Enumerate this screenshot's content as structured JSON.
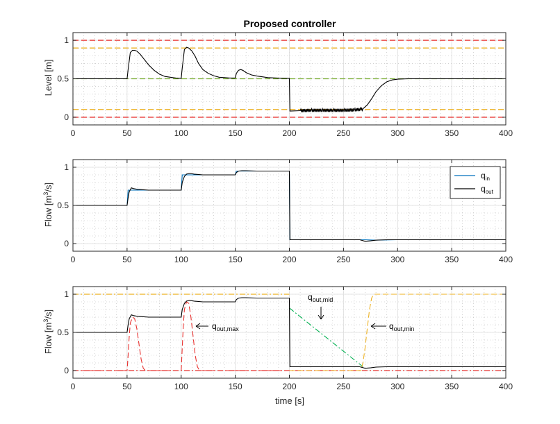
{
  "chart_data": [
    {
      "type": "line",
      "title": "Proposed controller",
      "xlabel": "",
      "ylabel": "Level [m]",
      "xlim": [
        0,
        400
      ],
      "ylim": [
        -0.1,
        1.1
      ],
      "xticks": [
        0,
        50,
        100,
        150,
        200,
        250,
        300,
        350,
        400
      ],
      "yticks": [
        0,
        0.5,
        1
      ],
      "ytick_labels": [
        "0",
        "0.5",
        "1"
      ],
      "grid": true,
      "minor_grid": true,
      "hlines": [
        {
          "y": 1.0,
          "color": "#e8312f",
          "style": "dashed"
        },
        {
          "y": 0.9,
          "color": "#edb120",
          "style": "dashed"
        },
        {
          "y": 0.5,
          "color": "#77ac30",
          "style": "dashed"
        },
        {
          "y": 0.1,
          "color": "#edb120",
          "style": "dashed"
        },
        {
          "y": 0.0,
          "color": "#e8312f",
          "style": "dashed"
        }
      ],
      "series": [
        {
          "color": "#000000",
          "x": [
            0,
            50,
            51,
            53,
            55,
            57,
            59,
            62,
            66,
            70,
            75,
            80,
            85,
            90,
            95,
            100,
            101,
            103,
            105,
            107,
            110,
            113,
            116,
            120,
            125,
            130,
            135,
            140,
            145,
            150,
            151,
            153,
            155,
            157,
            160,
            165,
            170,
            175,
            180,
            190,
            200,
            200.5,
            210,
            220,
            230,
            240,
            250,
            260,
            265,
            268,
            272,
            276,
            280,
            285,
            290,
            295,
            300,
            310,
            320,
            400
          ],
          "y": [
            0.5,
            0.5,
            0.62,
            0.84,
            0.87,
            0.87,
            0.86,
            0.82,
            0.75,
            0.68,
            0.61,
            0.56,
            0.53,
            0.52,
            0.51,
            0.505,
            0.64,
            0.88,
            0.91,
            0.9,
            0.86,
            0.79,
            0.7,
            0.62,
            0.57,
            0.54,
            0.52,
            0.515,
            0.51,
            0.51,
            0.57,
            0.61,
            0.62,
            0.61,
            0.58,
            0.55,
            0.535,
            0.525,
            0.515,
            0.508,
            0.505,
            0.08,
            0.085,
            0.09,
            0.09,
            0.09,
            0.09,
            0.095,
            0.1,
            0.11,
            0.16,
            0.24,
            0.33,
            0.41,
            0.46,
            0.485,
            0.495,
            0.5,
            0.5,
            0.5
          ],
          "oscillation": {
            "x_from": 201,
            "x_to": 268,
            "amplitude": 0.02
          }
        }
      ]
    },
    {
      "type": "line",
      "title": "",
      "xlabel": "",
      "ylabel": "Flow [m³/s]",
      "xlim": [
        0,
        400
      ],
      "ylim": [
        -0.1,
        1.1
      ],
      "xticks": [
        0,
        50,
        100,
        150,
        200,
        250,
        300,
        350,
        400
      ],
      "yticks": [
        0,
        0.5,
        1
      ],
      "ytick_labels": [
        "0",
        "0.5",
        "1"
      ],
      "grid": true,
      "minor_grid": true,
      "legend": {
        "placement": "top-right"
      },
      "series": [
        {
          "legend_label": "q",
          "legend_sub": "in",
          "color": "#0072bd",
          "x": [
            0,
            50,
            51,
            100,
            101,
            150,
            151,
            200,
            200.5,
            220,
            240,
            260,
            264,
            270,
            280,
            300,
            400
          ],
          "y": [
            0.5,
            0.5,
            0.7,
            0.7,
            0.9,
            0.9,
            0.95,
            0.95,
            0.05,
            0.05,
            0.05,
            0.05,
            0.05,
            0.05,
            0.045,
            0.05,
            0.05
          ]
        },
        {
          "legend_label": "q",
          "legend_sub": "out",
          "color": "#000000",
          "x": [
            0,
            50,
            51,
            52,
            54,
            56,
            60,
            70,
            100,
            101,
            103,
            105,
            108,
            112,
            120,
            150,
            151,
            153,
            156,
            160,
            170,
            200,
            200.5,
            265,
            270,
            275,
            280,
            290,
            300,
            400
          ],
          "y": [
            0.5,
            0.5,
            0.6,
            0.68,
            0.73,
            0.72,
            0.71,
            0.7,
            0.7,
            0.8,
            0.88,
            0.91,
            0.92,
            0.91,
            0.9,
            0.9,
            0.93,
            0.95,
            0.955,
            0.955,
            0.95,
            0.95,
            0.05,
            0.05,
            0.03,
            0.035,
            0.045,
            0.05,
            0.05,
            0.05
          ],
          "oscillation": {
            "x_from": 201,
            "x_to": 265,
            "amplitude": 0.04
          }
        }
      ]
    },
    {
      "type": "line",
      "title": "",
      "xlabel": "time [s]",
      "ylabel": "Flow [m³/s]",
      "xlim": [
        0,
        400
      ],
      "ylim": [
        -0.1,
        1.1
      ],
      "xticks": [
        0,
        50,
        100,
        150,
        200,
        250,
        300,
        350,
        400
      ],
      "yticks": [
        0,
        0.5,
        1
      ],
      "ytick_labels": [
        "0",
        "0.5",
        "1"
      ],
      "grid": true,
      "minor_grid": true,
      "hlines": [
        {
          "y": 1.0,
          "color": "#edb120",
          "style": "dashdot",
          "x_to": 200
        },
        {
          "y": 0.0,
          "color": "#e8312f",
          "style": "dashdot",
          "x_to": 400
        }
      ],
      "annotations": [
        {
          "text": "q",
          "sub": "out,max"
        },
        {
          "text": "q",
          "sub": "out,mid"
        },
        {
          "text": "q",
          "sub": "out,min"
        }
      ],
      "series": [
        {
          "name_id": "q_out_max",
          "color": "#e8312f",
          "style": "dashed",
          "x": [
            0,
            50,
            51,
            52,
            53,
            55,
            57,
            59,
            61,
            63,
            65,
            67,
            100,
            101,
            102,
            103,
            105,
            107,
            109,
            111,
            113,
            115,
            117,
            200
          ],
          "y": [
            0,
            0,
            0.2,
            0.45,
            0.62,
            0.7,
            0.68,
            0.55,
            0.35,
            0.15,
            0.03,
            0,
            0,
            0.3,
            0.6,
            0.8,
            0.9,
            0.88,
            0.7,
            0.45,
            0.2,
            0.05,
            0,
            0
          ]
        },
        {
          "name_id": "q_out_mid",
          "color": "#00b050",
          "style": "dashdot",
          "x": [
            200,
            268
          ],
          "y": [
            0.82,
            0.05
          ]
        },
        {
          "name_id": "q_out_min",
          "color": "#edb120",
          "style": "dashed",
          "x": [
            200,
            266,
            268,
            270,
            272,
            274,
            276,
            278,
            280,
            400
          ],
          "y": [
            0,
            0,
            0.1,
            0.3,
            0.55,
            0.8,
            0.95,
            1.0,
            1.0,
            1.0
          ]
        },
        {
          "name_id": "q_out",
          "color": "#000000",
          "x": [
            0,
            50,
            51,
            52,
            54,
            56,
            60,
            70,
            100,
            101,
            103,
            105,
            108,
            112,
            120,
            150,
            151,
            153,
            156,
            160,
            170,
            200,
            200.5,
            265,
            270,
            275,
            280,
            290,
            300,
            400
          ],
          "y": [
            0.5,
            0.5,
            0.6,
            0.68,
            0.73,
            0.72,
            0.71,
            0.7,
            0.7,
            0.8,
            0.88,
            0.91,
            0.92,
            0.91,
            0.9,
            0.9,
            0.93,
            0.95,
            0.955,
            0.955,
            0.95,
            0.95,
            0.05,
            0.05,
            0.03,
            0.035,
            0.045,
            0.05,
            0.05,
            0.05
          ],
          "oscillation": {
            "x_from": 201,
            "x_to": 265,
            "amplitude": 0.04
          }
        }
      ]
    }
  ]
}
